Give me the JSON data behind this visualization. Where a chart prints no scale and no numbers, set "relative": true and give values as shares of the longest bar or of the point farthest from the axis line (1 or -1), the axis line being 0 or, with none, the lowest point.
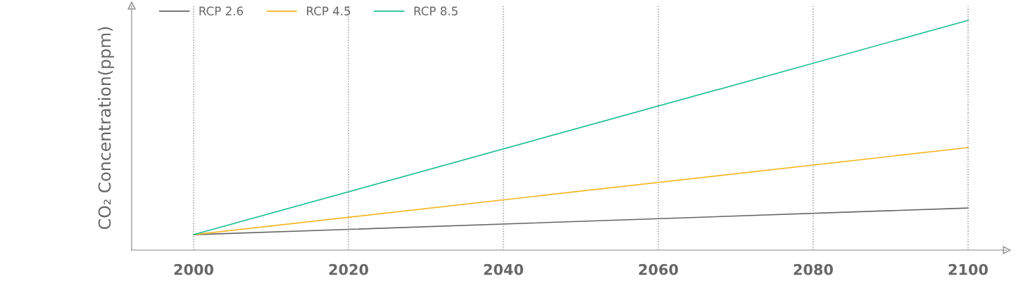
{
  "chart_data": {
    "type": "line",
    "relative": true,
    "ylabel": "CO₂ Concentration(ppm)",
    "x": [
      2000,
      2100
    ],
    "xlim": [
      1992,
      2105
    ],
    "xticks": [
      2000,
      2020,
      2040,
      2060,
      2080,
      2100
    ],
    "tick_labels": "x",
    "grid": "x",
    "legend": "top left",
    "marker": "none",
    "line_style": "solid",
    "series": [
      {
        "name": "RCP 2.6",
        "color": "#666666",
        "values": [
          0.067,
          0.183
        ]
      },
      {
        "name": "RCP 4.5",
        "color": "#f5b622",
        "values": [
          0.067,
          0.446
        ]
      },
      {
        "name": "RCP 8.5",
        "color": "#1dbf96",
        "values": [
          0.067,
          1.0
        ]
      }
    ]
  }
}
